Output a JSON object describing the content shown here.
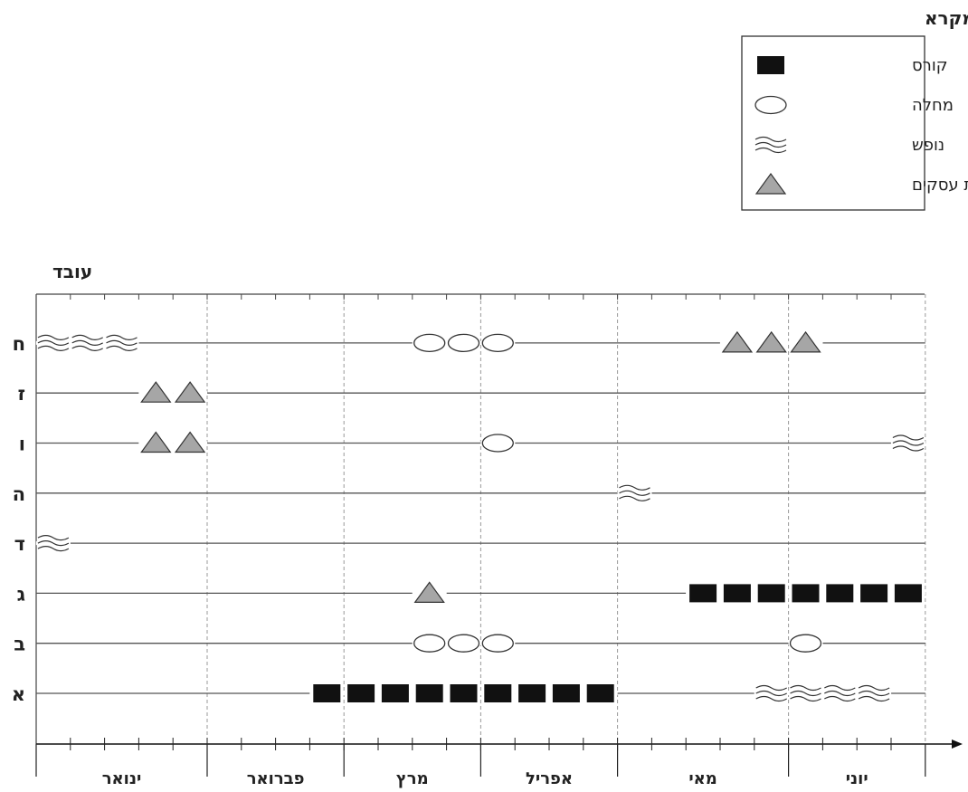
{
  "chart_data": {
    "type": "timeline",
    "y_axis_title": "עובד",
    "legend_title": "מקרא",
    "legend": [
      {
        "key": "course",
        "label": "קורס",
        "symbol": "square"
      },
      {
        "key": "sick",
        "label": "מחלה",
        "symbol": "ellipse"
      },
      {
        "key": "vacation",
        "label": "נופש",
        "symbol": "waves"
      },
      {
        "key": "trip",
        "label": "נסיעת עסקים",
        "symbol": "triangle"
      }
    ],
    "months": [
      {
        "name": "ינואר",
        "weeks": 5
      },
      {
        "name": "פברואר",
        "weeks": 4
      },
      {
        "name": "מרץ",
        "weeks": 4
      },
      {
        "name": "אפריל",
        "weeks": 4
      },
      {
        "name": "מאי",
        "weeks": 5
      },
      {
        "name": "יוני",
        "weeks": 4
      }
    ],
    "employees": [
      "א",
      "ב",
      "ג",
      "ד",
      "ה",
      "ו",
      "ז",
      "ח"
    ],
    "events": {
      "ח": [
        {
          "type": "vacation",
          "weeks": [
            1,
            2,
            3
          ]
        },
        {
          "type": "sick",
          "weeks": [
            12,
            13,
            14
          ]
        },
        {
          "type": "trip",
          "weeks": [
            21,
            22,
            23
          ]
        }
      ],
      "ז": [
        {
          "type": "trip",
          "weeks": [
            4,
            5
          ]
        }
      ],
      "ו": [
        {
          "type": "trip",
          "weeks": [
            4,
            5
          ]
        },
        {
          "type": "sick",
          "weeks": [
            14
          ]
        },
        {
          "type": "vacation",
          "weeks": [
            26
          ]
        }
      ],
      "ה": [
        {
          "type": "vacation",
          "weeks": [
            18
          ]
        }
      ],
      "ד": [
        {
          "type": "vacation",
          "weeks": [
            1
          ]
        }
      ],
      "ג": [
        {
          "type": "trip",
          "weeks": [
            12
          ]
        },
        {
          "type": "course",
          "weeks": [
            20,
            21,
            22,
            23,
            24,
            25,
            26
          ]
        }
      ],
      "ב": [
        {
          "type": "sick",
          "weeks": [
            12,
            13,
            14
          ]
        },
        {
          "type": "sick",
          "weeks": [
            23
          ]
        }
      ],
      "א": [
        {
          "type": "course",
          "weeks": [
            9,
            10,
            11,
            12,
            13,
            14,
            15,
            16,
            17
          ]
        },
        {
          "type": "vacation",
          "weeks": [
            22,
            23,
            24,
            25
          ]
        }
      ]
    }
  }
}
